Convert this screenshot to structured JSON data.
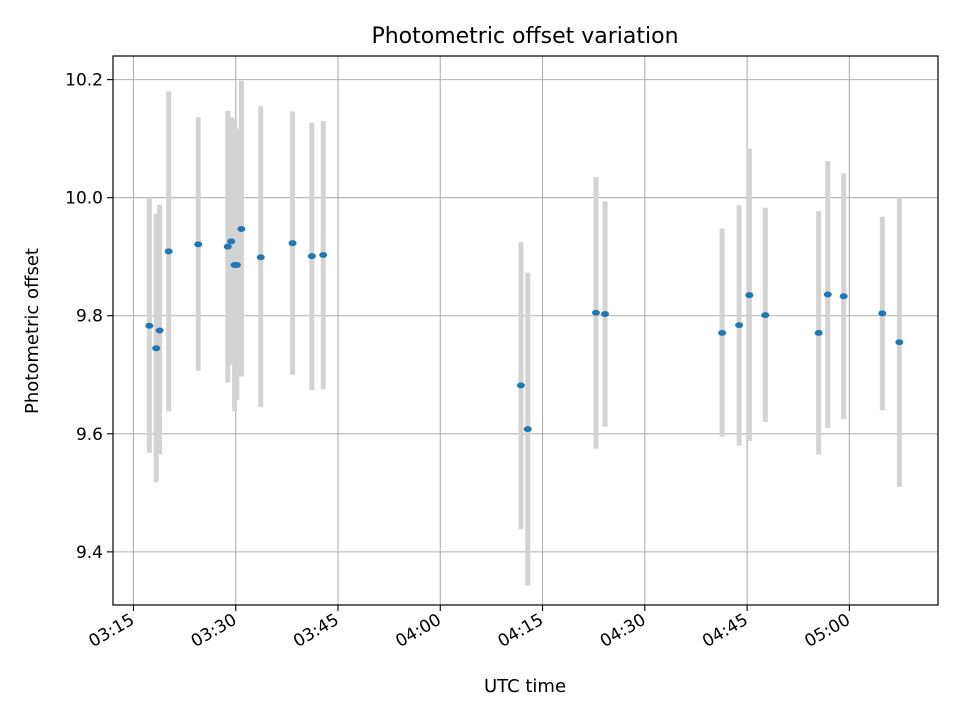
{
  "chart_data": {
    "type": "scatter",
    "title": "Photometric offset variation",
    "xlabel": "UTC time",
    "ylabel": "Photometric offset",
    "grid": true,
    "x_is_time": true,
    "xlim": [
      "03:12",
      "05:13"
    ],
    "ylim": [
      9.31,
      10.24
    ],
    "xticks": [
      "03:15",
      "03:30",
      "03:45",
      "04:00",
      "04:15",
      "04:30",
      "04:45",
      "05:00"
    ],
    "yticks": [
      9.4,
      9.6,
      9.8,
      10.0,
      10.2
    ],
    "ytick_labels": [
      "9.4",
      "9.6",
      "9.8",
      "10.0",
      "10.2"
    ],
    "colors": {
      "marker": "#1f77b4",
      "errorbar": "#d3d3d3",
      "grid": "#b0b0b0"
    },
    "points": [
      {
        "t": "03:17:20",
        "y": 9.783,
        "lo": 9.568,
        "hi": 9.998
      },
      {
        "t": "03:18:20",
        "y": 9.745,
        "lo": 9.518,
        "hi": 9.973
      },
      {
        "t": "03:18:50",
        "y": 9.775,
        "lo": 9.565,
        "hi": 9.988
      },
      {
        "t": "03:20:10",
        "y": 9.909,
        "lo": 9.638,
        "hi": 10.18
      },
      {
        "t": "03:24:30",
        "y": 9.921,
        "lo": 9.707,
        "hi": 10.136
      },
      {
        "t": "03:28:50",
        "y": 9.917,
        "lo": 9.687,
        "hi": 10.147
      },
      {
        "t": "03:29:20",
        "y": 9.926,
        "lo": 9.717,
        "hi": 10.136
      },
      {
        "t": "03:29:50",
        "y": 9.886,
        "lo": 9.638,
        "hi": 10.134
      },
      {
        "t": "03:30:10",
        "y": 9.886,
        "lo": 9.657,
        "hi": 10.117
      },
      {
        "t": "03:30:50",
        "y": 9.947,
        "lo": 9.697,
        "hi": 10.198
      },
      {
        "t": "03:33:40",
        "y": 9.899,
        "lo": 9.645,
        "hi": 10.155
      },
      {
        "t": "03:38:20",
        "y": 9.923,
        "lo": 9.7,
        "hi": 10.146
      },
      {
        "t": "03:41:10",
        "y": 9.901,
        "lo": 9.674,
        "hi": 10.127
      },
      {
        "t": "03:42:50",
        "y": 9.903,
        "lo": 9.675,
        "hi": 10.13
      },
      {
        "t": "04:11:50",
        "y": 9.682,
        "lo": 9.438,
        "hi": 9.925
      },
      {
        "t": "04:12:50",
        "y": 9.608,
        "lo": 9.343,
        "hi": 9.873
      },
      {
        "t": "04:22:50",
        "y": 9.805,
        "lo": 9.575,
        "hi": 10.035
      },
      {
        "t": "04:24:10",
        "y": 9.803,
        "lo": 9.612,
        "hi": 9.994
      },
      {
        "t": "04:41:20",
        "y": 9.771,
        "lo": 9.595,
        "hi": 9.948
      },
      {
        "t": "04:43:50",
        "y": 9.784,
        "lo": 9.58,
        "hi": 9.987
      },
      {
        "t": "04:45:20",
        "y": 9.835,
        "lo": 9.588,
        "hi": 10.083
      },
      {
        "t": "04:47:40",
        "y": 9.801,
        "lo": 9.62,
        "hi": 9.983
      },
      {
        "t": "04:55:30",
        "y": 9.771,
        "lo": 9.565,
        "hi": 9.977
      },
      {
        "t": "04:56:50",
        "y": 9.836,
        "lo": 9.61,
        "hi": 10.062
      },
      {
        "t": "04:59:10",
        "y": 9.833,
        "lo": 9.625,
        "hi": 10.041
      },
      {
        "t": "05:04:50",
        "y": 9.804,
        "lo": 9.64,
        "hi": 9.968
      },
      {
        "t": "05:07:20",
        "y": 9.755,
        "lo": 9.51,
        "hi": 10.0
      }
    ]
  }
}
